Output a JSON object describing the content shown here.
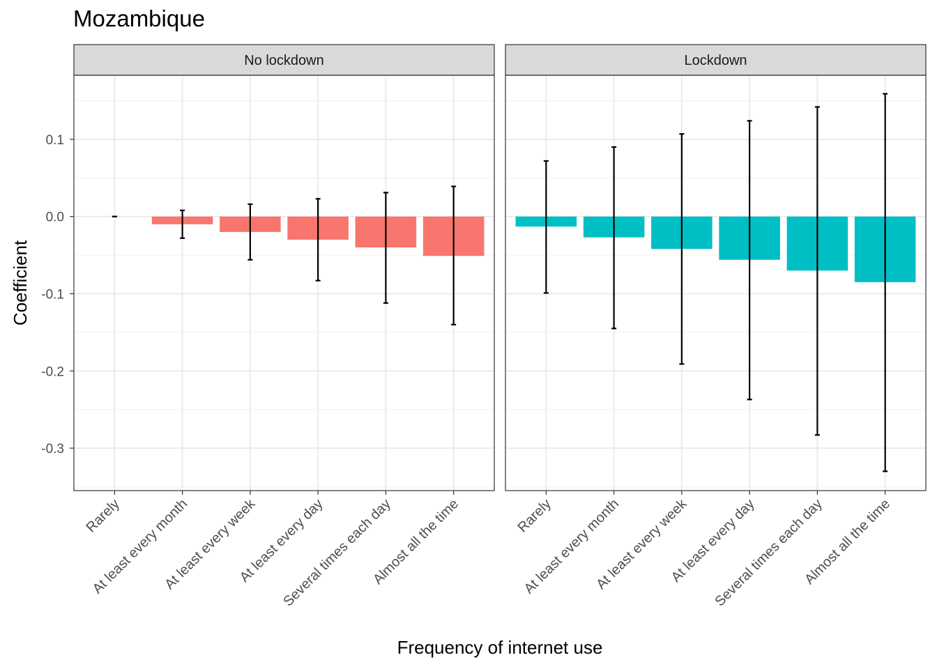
{
  "chart_data": {
    "type": "bar",
    "title": "Mozambique",
    "xlabel": "Frequency of internet use",
    "ylabel": "Coefficient",
    "ylim": [
      -0.355,
      0.183
    ],
    "yticks": [
      "0.1",
      "0.0",
      "-0.1",
      "-0.2",
      "-0.3"
    ],
    "ytick_values": [
      0.1,
      0.0,
      -0.1,
      -0.2,
      -0.3
    ],
    "grid": true,
    "categories": [
      "Rarely",
      "At least every month",
      "At least every week",
      "At least every day",
      "Several times each day",
      "Almost all the time"
    ],
    "panels": [
      {
        "label": "No lockdown",
        "color": "#F8766D",
        "values": [
          0.0,
          -0.01,
          -0.02,
          -0.03,
          -0.04,
          -0.051
        ],
        "ci_low": [
          0.0,
          -0.028,
          -0.056,
          -0.083,
          -0.112,
          -0.14
        ],
        "ci_high": [
          0.0,
          0.008,
          0.016,
          0.023,
          0.031,
          0.039
        ]
      },
      {
        "label": "Lockdown",
        "color": "#00BFC4",
        "values": [
          -0.013,
          -0.027,
          -0.042,
          -0.056,
          -0.07,
          -0.085
        ],
        "ci_low": [
          -0.099,
          -0.145,
          -0.191,
          -0.237,
          -0.283,
          -0.33
        ],
        "ci_high": [
          0.072,
          0.09,
          0.107,
          0.124,
          0.142,
          0.159
        ]
      }
    ]
  }
}
